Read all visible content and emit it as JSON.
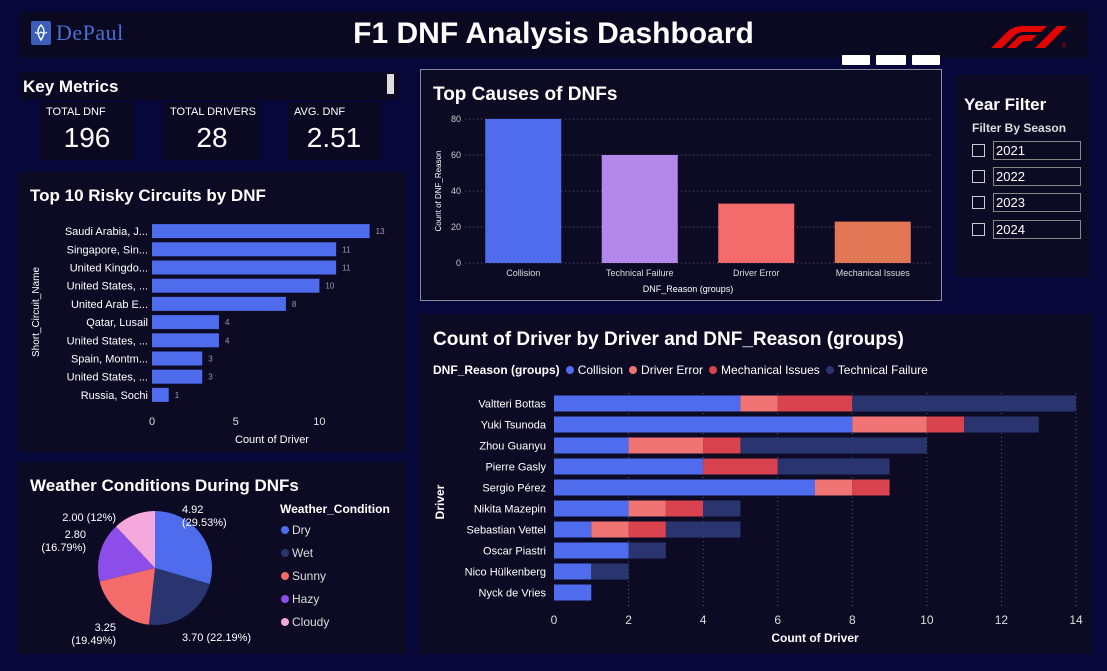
{
  "header": {
    "logo_text": "DePaul",
    "title": "F1 DNF Analysis Dashboard"
  },
  "key_metrics": {
    "title": "Key Metrics",
    "cards": [
      {
        "label": "TOTAL DNF",
        "value": "196"
      },
      {
        "label": "TOTAL DRIVERS",
        "value": "28"
      },
      {
        "label": "AVG. DNF",
        "value": "2.51"
      }
    ]
  },
  "year_filter": {
    "title": "Year Filter",
    "subtitle": "Filter By Season",
    "options": [
      "2021",
      "2022",
      "2023",
      "2024"
    ]
  },
  "colors": {
    "collision": "#4e6cec",
    "technical_failure": "#b388ea",
    "driver_error": "#f36b6b",
    "mechanical_issues": "#e27756",
    "stack_driver_error": "#f07474",
    "stack_mechanical": "#d8434f",
    "stack_technical": "#2a3570"
  },
  "chart_data": [
    {
      "type": "bar",
      "title": "Top Causes of DNFs",
      "categories": [
        "Collision",
        "Technical Failure",
        "Driver Error",
        "Mechanical Issues"
      ],
      "values": [
        80,
        60,
        33,
        23
      ],
      "xlabel": "DNF_Reason (groups)",
      "ylabel": "Count of DNF_Reason",
      "ylim": [
        0,
        80
      ],
      "yticks": [
        0,
        20,
        40,
        60,
        80
      ],
      "grid": true
    },
    {
      "type": "bar",
      "orientation": "horizontal",
      "title": "Top 10 Risky Circuits by DNF",
      "categories": [
        "Saudi Arabia, J...",
        "Singapore, Sin...",
        "United Kingdo...",
        "United States, ...",
        "United Arab E...",
        "Qatar, Lusail",
        "United States, ...",
        "Spain, Montm...",
        "United States, ...",
        "Russia, Sochi"
      ],
      "values": [
        13,
        11,
        11,
        10,
        8,
        4,
        4,
        3,
        3,
        1
      ],
      "xlabel": "Count of Driver",
      "ylabel": "Short_Circuit_Name",
      "xlim": [
        0,
        13.5
      ],
      "xticks": [
        0,
        5,
        10
      ],
      "data_labels": true
    },
    {
      "type": "pie",
      "title": "Weather Conditions During DNFs",
      "legend_title": "Weather_Condition",
      "categories": [
        "Dry",
        "Wet",
        "Sunny",
        "Hazy",
        "Cloudy"
      ],
      "values": [
        4.92,
        3.7,
        3.25,
        2.8,
        2.0
      ],
      "labels": [
        "4.92 (29.53%)",
        "3.70 (22.19%)",
        "3.25 (19.49%)",
        "2.80 (16.79%)",
        "2.00 (12%)"
      ],
      "colors": [
        "#4e6cec",
        "#2a3570",
        "#f36b6b",
        "#8d4de8",
        "#f5a8dc"
      ],
      "legend_position": "right"
    },
    {
      "type": "bar",
      "orientation": "horizontal",
      "stacked": true,
      "title": "Count of Driver by Driver and DNF_Reason (groups)",
      "legend_title": "DNF_Reason (groups)",
      "legend_position": "top-left",
      "categories": [
        "Valtteri Bottas",
        "Yuki Tsunoda",
        "Zhou Guanyu",
        "Pierre Gasly",
        "Sergio Pérez",
        "Nikita Mazepin",
        "Sebastian Vettel",
        "Oscar Piastri",
        "Nico Hülkenberg",
        "Nyck de Vries"
      ],
      "series": [
        {
          "name": "Collision",
          "values": [
            5,
            8,
            2,
            4,
            7,
            2,
            1,
            2,
            1,
            1
          ]
        },
        {
          "name": "Driver Error",
          "values": [
            1,
            2,
            2,
            0,
            1,
            1,
            1,
            0,
            0,
            0
          ]
        },
        {
          "name": "Mechanical Issues",
          "values": [
            2,
            1,
            1,
            2,
            1,
            1,
            1,
            0,
            0,
            0
          ]
        },
        {
          "name": "Technical Failure",
          "values": [
            6,
            2,
            5,
            3,
            0,
            1,
            2,
            1,
            1,
            0
          ]
        }
      ],
      "xlabel": "Count of Driver",
      "ylabel": "Driver",
      "xlim": [
        0,
        14
      ],
      "xticks": [
        0,
        2,
        4,
        6,
        8,
        10,
        12,
        14
      ],
      "grid": true
    }
  ]
}
